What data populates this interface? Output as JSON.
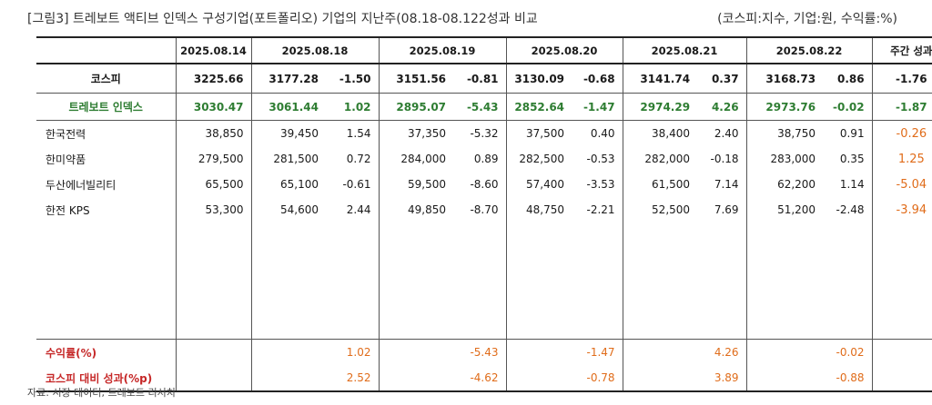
{
  "caption": "[그림3]   트레보트 액티브 인덱스 구성기업(포트폴리오) 기업의 지난주(08.18-08.122성과 비교",
  "unit_note": "(코스피:지수, 기업:원, 수익률:%)",
  "source": "자료: 시장 데이터, 트레보트 리서치",
  "headers": [
    "",
    "2025.08.14",
    "2025.08.18",
    "2025.08.19",
    "2025.08.20",
    "2025.08.21",
    "2025.08.22",
    "주간 성과"
  ],
  "kospi": {
    "name": "코스피",
    "base": "3225.66",
    "days": [
      [
        "3177.28",
        "-1.50"
      ],
      [
        "3151.56",
        "-0.81"
      ],
      [
        "3130.09",
        "-0.68"
      ],
      [
        "3141.74",
        "0.37"
      ],
      [
        "3168.73",
        "0.86"
      ]
    ],
    "week": "-1.76"
  },
  "index": {
    "name": "트레보트 인덱스",
    "base": "3030.47",
    "days": [
      [
        "3061.44",
        "1.02"
      ],
      [
        "2895.07",
        "-5.43"
      ],
      [
        "2852.64",
        "-1.47"
      ],
      [
        "2974.29",
        "4.26"
      ],
      [
        "2973.76",
        "-0.02"
      ]
    ],
    "week": "-1.87"
  },
  "stocks": [
    {
      "name": "한국전력",
      "base": "38,850",
      "days": [
        [
          "39,450",
          "1.54"
        ],
        [
          "37,350",
          "-5.32"
        ],
        [
          "37,500",
          "0.40"
        ],
        [
          "38,400",
          "2.40"
        ],
        [
          "38,750",
          "0.91"
        ]
      ],
      "week": "-0.26"
    },
    {
      "name": "한미약품",
      "base": "279,500",
      "days": [
        [
          "281,500",
          "0.72"
        ],
        [
          "284,000",
          "0.89"
        ],
        [
          "282,500",
          "-0.53"
        ],
        [
          "282,000",
          "-0.18"
        ],
        [
          "283,000",
          "0.35"
        ]
      ],
      "week": "1.25"
    },
    {
      "name": "두산에너빌리티",
      "base": "65,500",
      "days": [
        [
          "65,100",
          "-0.61"
        ],
        [
          "59,500",
          "-8.60"
        ],
        [
          "57,400",
          "-3.53"
        ],
        [
          "61,500",
          "7.14"
        ],
        [
          "62,200",
          "1.14"
        ]
      ],
      "week": "-5.04"
    },
    {
      "name": "한전 KPS",
      "base": "53,300",
      "days": [
        [
          "54,600",
          "2.44"
        ],
        [
          "49,850",
          "-8.70"
        ],
        [
          "48,750",
          "-2.21"
        ],
        [
          "52,500",
          "7.69"
        ],
        [
          "51,200",
          "-2.48"
        ]
      ],
      "week": "-3.94"
    }
  ],
  "footer": {
    "return_label": "수익률(%)",
    "returns": [
      "1.02",
      "-5.43",
      "-1.47",
      "4.26",
      "-0.02"
    ],
    "vs_label": "코스피 대비 성과(%p)",
    "vs": [
      "2.52",
      "-4.62",
      "-0.78",
      "3.89",
      "-0.88"
    ]
  }
}
